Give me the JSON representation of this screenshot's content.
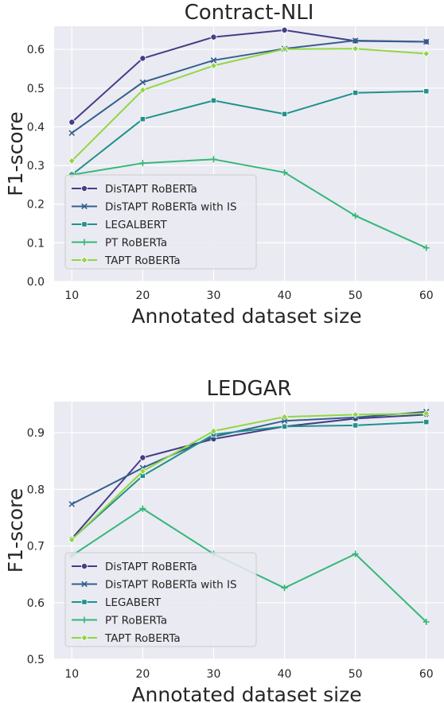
{
  "chart_data": [
    {
      "type": "line",
      "title": "Contract-NLI",
      "xlabel": "Annotated dataset size",
      "ylabel": "F1-score",
      "x": [
        10,
        20,
        30,
        40,
        50,
        60
      ],
      "xlim": [
        7.5,
        62.5
      ],
      "ylim": [
        0.0,
        0.66
      ],
      "yticks": [
        0.0,
        0.1,
        0.2,
        0.3,
        0.4,
        0.5,
        0.6
      ],
      "grid": true,
      "legend_position": "lower-left",
      "series": [
        {
          "name": "DisTAPT RoBERTa",
          "color": "#433e85",
          "marker": "circle",
          "values": [
            0.412,
            0.577,
            0.632,
            0.65,
            0.622,
            0.62
          ]
        },
        {
          "name": "DisTAPT RoBERTa with IS",
          "color": "#35608d",
          "marker": "x",
          "values": [
            0.384,
            0.515,
            0.572,
            0.602,
            0.623,
            0.62
          ]
        },
        {
          "name": "LEGALBERT",
          "color": "#21918c",
          "marker": "square",
          "values": [
            0.276,
            0.42,
            0.468,
            0.433,
            0.488,
            0.492
          ]
        },
        {
          "name": "PT RoBERTa",
          "color": "#35b779",
          "marker": "plus",
          "values": [
            0.276,
            0.306,
            0.316,
            0.282,
            0.17,
            0.087
          ]
        },
        {
          "name": "TAPT RoBERTa",
          "color": "#90d743",
          "marker": "diamond",
          "values": [
            0.312,
            0.495,
            0.558,
            0.601,
            0.602,
            0.589
          ]
        }
      ]
    },
    {
      "type": "line",
      "title": "LEDGAR",
      "xlabel": "Annotated dataset size",
      "ylabel": "F1-score",
      "x": [
        10,
        20,
        30,
        40,
        50,
        60
      ],
      "xlim": [
        7.5,
        62.5
      ],
      "ylim": [
        0.5,
        0.955
      ],
      "yticks": [
        0.5,
        0.6,
        0.7,
        0.8,
        0.9
      ],
      "grid": true,
      "legend_position": "lower-left",
      "series": [
        {
          "name": "DisTAPT RoBERTa",
          "color": "#433e85",
          "marker": "circle",
          "values": [
            0.713,
            0.856,
            0.889,
            0.911,
            0.925,
            0.932
          ]
        },
        {
          "name": "DisTAPT RoBERTa with IS",
          "color": "#35608d",
          "marker": "x",
          "values": [
            0.774,
            0.838,
            0.893,
            0.921,
            0.927,
            0.937
          ]
        },
        {
          "name": "LEGABERT",
          "color": "#21918c",
          "marker": "square",
          "values": [
            0.712,
            0.824,
            0.897,
            0.911,
            0.913,
            0.919
          ]
        },
        {
          "name": "PT RoBERTa",
          "color": "#35b779",
          "marker": "plus",
          "values": [
            0.683,
            0.766,
            0.686,
            0.626,
            0.686,
            0.566
          ]
        },
        {
          "name": "TAPT RoBERTa",
          "color": "#90d743",
          "marker": "diamond",
          "values": [
            0.711,
            0.832,
            0.903,
            0.928,
            0.932,
            0.934
          ]
        }
      ]
    }
  ]
}
